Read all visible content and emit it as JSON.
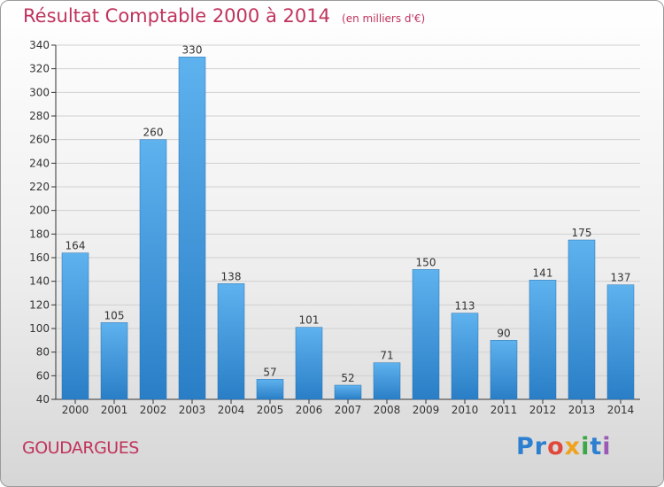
{
  "header": {
    "title": "Résultat Comptable 2000 à 2014",
    "unit": "(en milliers d'€)"
  },
  "footer": {
    "commune": "GOUDARGUES",
    "brand": "Proxiti"
  },
  "colors": {
    "bar_light": "#5eb2ee",
    "bar_dark": "#2a7ec6",
    "title": "#c0335c"
  },
  "chart_data": {
    "type": "bar",
    "categories": [
      "2000",
      "2001",
      "2002",
      "2003",
      "2004",
      "2005",
      "2006",
      "2007",
      "2008",
      "2009",
      "2010",
      "2011",
      "2012",
      "2013",
      "2014"
    ],
    "values": [
      164,
      105,
      260,
      330,
      138,
      57,
      101,
      52,
      71,
      150,
      113,
      90,
      141,
      175,
      137
    ],
    "title": "Résultat Comptable 2000 à 2014",
    "subtitle": "(en milliers d'€)",
    "xlabel": "",
    "ylabel": "",
    "ylim": [
      40,
      340
    ],
    "yticks": [
      40,
      60,
      80,
      100,
      120,
      140,
      160,
      180,
      200,
      220,
      240,
      260,
      280,
      300,
      320,
      340
    ],
    "grid": true,
    "legend": "none"
  }
}
